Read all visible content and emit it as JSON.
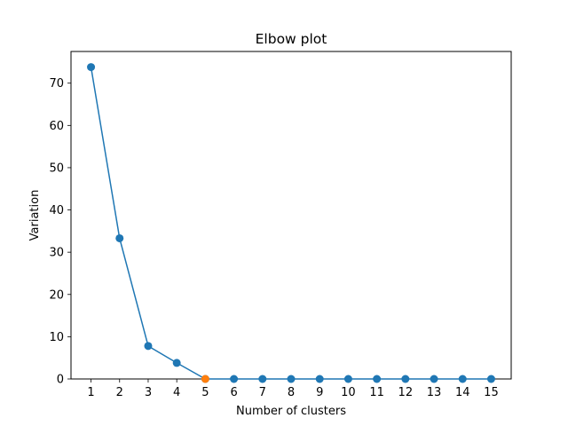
{
  "chart_data": {
    "type": "line",
    "title": "Elbow plot",
    "xlabel": "Number of clusters",
    "ylabel": "Variation",
    "x": [
      1,
      2,
      3,
      4,
      5,
      6,
      7,
      8,
      9,
      10,
      11,
      12,
      13,
      14,
      15
    ],
    "series": [
      {
        "values": [
          73.8,
          33.3,
          7.8,
          3.8,
          0,
          0,
          0,
          0,
          0,
          0,
          0,
          0,
          0,
          0,
          0
        ],
        "color": "#1f77b4",
        "marker": "circle"
      }
    ],
    "highlight": {
      "x": 5,
      "y": 0,
      "color": "#ff7f0e"
    },
    "xticks": [
      1,
      2,
      3,
      4,
      5,
      6,
      7,
      8,
      9,
      10,
      11,
      12,
      13,
      14,
      15
    ],
    "yticks": [
      0,
      10,
      20,
      30,
      40,
      50,
      60,
      70
    ],
    "xlim": [
      0.3,
      15.7
    ],
    "ylim": [
      0,
      77.5
    ],
    "grid": false,
    "legend": "none"
  }
}
